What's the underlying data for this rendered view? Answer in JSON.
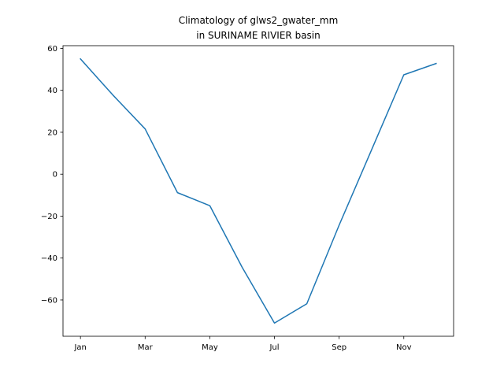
{
  "chart_data": {
    "type": "line",
    "title_lines": [
      "Climatology of glws2_gwater_mm",
      "in SURINAME RIVIER basin"
    ],
    "xlabel": "",
    "ylabel": "",
    "x": [
      1,
      2,
      3,
      4,
      5,
      6,
      7,
      8,
      9,
      10,
      11,
      12
    ],
    "x_ticks": [
      {
        "x": 1,
        "label": "Jan"
      },
      {
        "x": 3,
        "label": "Mar"
      },
      {
        "x": 5,
        "label": "May"
      },
      {
        "x": 7,
        "label": "Jul"
      },
      {
        "x": 9,
        "label": "Sep"
      },
      {
        "x": 11,
        "label": "Nov"
      }
    ],
    "y_ticks": [
      {
        "y": 60,
        "label": "60"
      },
      {
        "y": 40,
        "label": "40"
      },
      {
        "y": 20,
        "label": "20"
      },
      {
        "y": 0,
        "label": "0"
      },
      {
        "y": -20,
        "label": "−20"
      },
      {
        "y": -40,
        "label": "−40"
      },
      {
        "y": -60,
        "label": "−60"
      }
    ],
    "series": [
      {
        "values": [
          55.0,
          37.8,
          21.6,
          -8.8,
          -15.0,
          -44.4,
          -71.0,
          -61.8,
          -24.3,
          11.5,
          47.4,
          52.8
        ],
        "color": "#1f77b4"
      }
    ],
    "xlim": [
      0.46,
      12.54
    ],
    "ylim": [
      -77.3,
      61.3
    ],
    "grid": false,
    "legend": "none"
  }
}
